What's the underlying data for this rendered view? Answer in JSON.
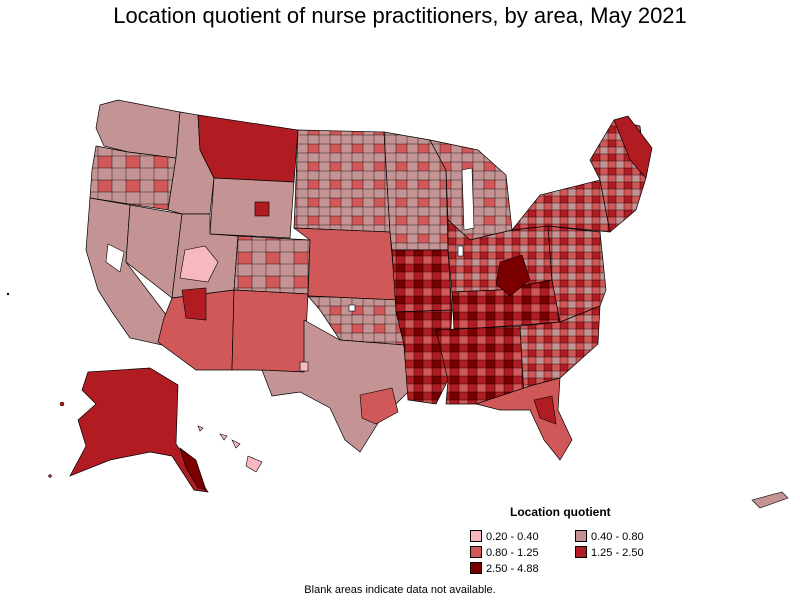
{
  "title": "Location quotient of nurse practitioners, by area, May 2021",
  "legend": {
    "title": "Location quotient",
    "items": [
      {
        "label": "0.20 - 0.40",
        "color": "#f8b8bf"
      },
      {
        "label": "0.40 - 0.80",
        "color": "#c49494"
      },
      {
        "label": "0.80 - 1.25",
        "color": "#d05858"
      },
      {
        "label": "1.25 - 2.50",
        "color": "#b01c22"
      },
      {
        "label": "2.50 - 4.88",
        "color": "#7a0000"
      }
    ]
  },
  "footnote": "Blank areas indicate data not available.",
  "colors": {
    "border": "#000000",
    "blank": "#ffffff"
  }
}
